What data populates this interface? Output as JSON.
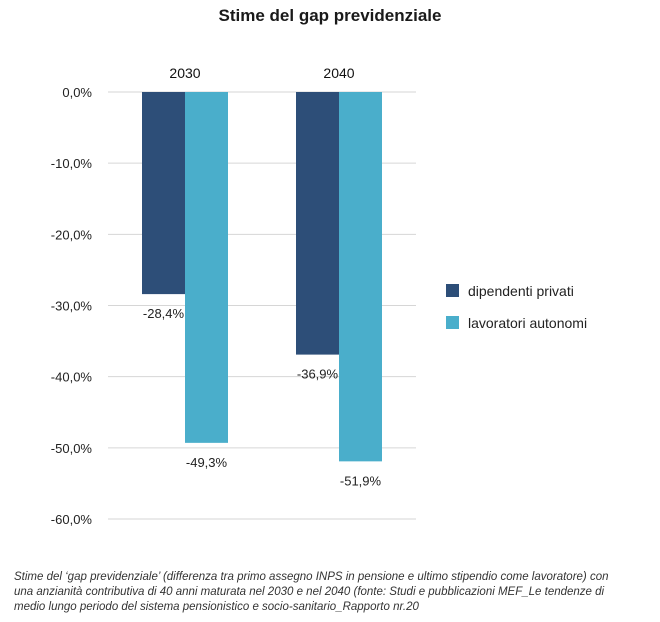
{
  "chart_data": {
    "type": "bar",
    "title": "Stime del gap previdenziale",
    "categories": [
      "2030",
      "2040"
    ],
    "series": [
      {
        "name": "dipendenti privati",
        "values": [
          -28.4,
          -36.9
        ],
        "labels": [
          "-28,4%",
          "-36,9%"
        ],
        "color": "#2d4e78"
      },
      {
        "name": "lavoratori autonomi",
        "values": [
          -49.3,
          -51.9
        ],
        "labels": [
          "-49,3%",
          "-51,9%"
        ],
        "color": "#4aaecb"
      }
    ],
    "ylim": [
      -60,
      0
    ],
    "yticks": [
      0,
      -10,
      -20,
      -30,
      -40,
      -50,
      -60
    ],
    "ytick_labels": [
      "0,0%",
      "-10,0%",
      "-20,0%",
      "-30,0%",
      "-40,0%",
      "-50,0%",
      "-60,0%"
    ],
    "grid": true,
    "legend_position": "right",
    "xlabel": "",
    "ylabel": ""
  },
  "caption": "Stime del ‘gap previdenziale’ (differenza tra primo assegno INPS in pensione e ultimo stipendio come lavoratore) con una anzianità contributiva di 40 anni maturata nel 2030 e nel 2040 (fonte: Studi e pubblicazioni MEF_Le tendenze di medio lungo periodo del sistema pensionistico e socio-sanitario_Rapporto nr.20"
}
